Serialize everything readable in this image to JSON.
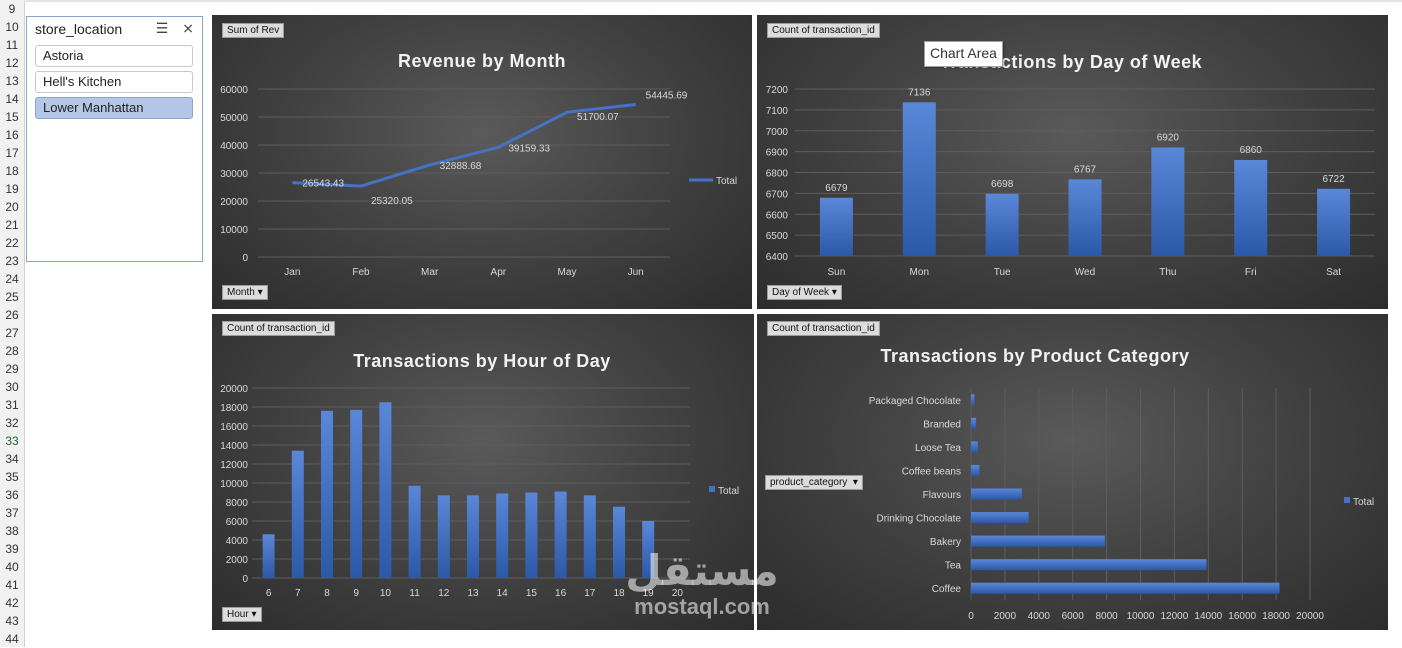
{
  "spreadsheet": {
    "row_numbers": [
      "9",
      "10",
      "11",
      "12",
      "13",
      "14",
      "15",
      "16",
      "17",
      "18",
      "19",
      "20",
      "21",
      "22",
      "23",
      "24",
      "25",
      "26",
      "27",
      "28",
      "29",
      "30",
      "31",
      "32",
      "33",
      "34",
      "35",
      "36",
      "37",
      "38",
      "39",
      "40",
      "41",
      "42",
      "43",
      "44"
    ],
    "active_row": "33"
  },
  "slicer": {
    "title": "store_location",
    "icons": [
      "multi-select-icon",
      "clear-filter-icon"
    ],
    "items": [
      {
        "label": "Astoria",
        "selected": false
      },
      {
        "label": "Hell's Kitchen",
        "selected": false
      },
      {
        "label": "Lower Manhattan",
        "selected": true
      }
    ]
  },
  "tooltip": "Chart Area",
  "watermark": {
    "arabic": "مستقل",
    "latin": "mostaql.com"
  },
  "colors": {
    "series": "#4472c4",
    "bar_top": "#5b87d8",
    "bar_bottom": "#2c58a8",
    "text": "#d9d9d9",
    "gridline": "#5d5d5d"
  },
  "chart_data": [
    {
      "type": "line",
      "title": "Revenue by Month",
      "value_button": "Sum of Rev",
      "axis_button": "Month",
      "categories": [
        "Jan",
        "Feb",
        "Mar",
        "Apr",
        "May",
        "Jun"
      ],
      "series": [
        {
          "name": "Total",
          "values": [
            26543.43,
            25320.05,
            32888.68,
            39159.33,
            51700.07,
            54445.69
          ]
        }
      ],
      "data_labels": [
        "26543.43",
        "25320.05",
        "32888.68",
        "39159.33",
        "51700.07",
        "54445.69"
      ],
      "ylim": [
        0,
        60000
      ],
      "yticks": [
        "0",
        "10000",
        "20000",
        "30000",
        "40000",
        "50000",
        "60000"
      ],
      "legend": "right",
      "grid": true
    },
    {
      "type": "bar",
      "title": "Transactions by Day of Week",
      "value_button": "Count of transaction_id",
      "axis_button": "Day of Week",
      "categories": [
        "Sun",
        "Mon",
        "Tue",
        "Wed",
        "Thu",
        "Fri",
        "Sat"
      ],
      "values": [
        6679,
        7136,
        6698,
        6767,
        6920,
        6860,
        6722
      ],
      "data_labels": [
        "6679",
        "7136",
        "6698",
        "6767",
        "6920",
        "6860",
        "6722"
      ],
      "ylim": [
        6400,
        7200
      ],
      "yticks": [
        "6400",
        "6500",
        "6600",
        "6700",
        "6800",
        "6900",
        "7000",
        "7100",
        "7200"
      ],
      "grid": true
    },
    {
      "type": "bar",
      "title": "Transactions by Hour of Day",
      "value_button": "Count of transaction_id",
      "axis_button": "Hour",
      "categories": [
        "6",
        "7",
        "8",
        "9",
        "10",
        "11",
        "12",
        "13",
        "14",
        "15",
        "16",
        "17",
        "18",
        "19",
        "20"
      ],
      "series": [
        {
          "name": "Total",
          "values": [
            4600,
            13400,
            17600,
            17700,
            18500,
            9700,
            8700,
            8700,
            8900,
            9000,
            9100,
            8700,
            7500,
            6000,
            0
          ]
        }
      ],
      "ylim": [
        0,
        20000
      ],
      "yticks": [
        "0",
        "2000",
        "4000",
        "6000",
        "8000",
        "10000",
        "12000",
        "14000",
        "16000",
        "18000",
        "20000"
      ],
      "legend": "right",
      "grid": true
    },
    {
      "type": "bar",
      "orientation": "horizontal",
      "title": "Transactions by Product Category",
      "value_button": "Count of transaction_id",
      "axis_button": "product_category",
      "categories": [
        "Coffee",
        "Tea",
        "Bakery",
        "Drinking Chocolate",
        "Flavours",
        "Coffee beans",
        "Loose Tea",
        "Branded",
        "Packaged Chocolate"
      ],
      "series": [
        {
          "name": "Total",
          "values": [
            18200,
            13900,
            7900,
            3400,
            3000,
            500,
            400,
            300,
            200
          ]
        }
      ],
      "xlim": [
        0,
        20000
      ],
      "xticks": [
        "0",
        "2000",
        "4000",
        "6000",
        "8000",
        "10000",
        "12000",
        "14000",
        "16000",
        "18000",
        "20000"
      ],
      "legend": "right",
      "grid": true
    }
  ]
}
